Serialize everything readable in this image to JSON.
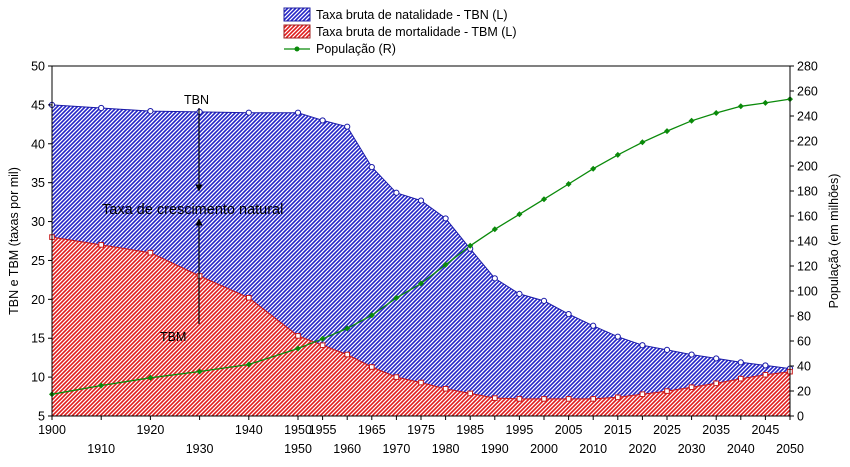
{
  "chart_data": {
    "type": "area",
    "title": "",
    "xlabel": "",
    "ylabel_left": "TBN e TBM (taxas por mil)",
    "ylabel_right": "População (em milhões)",
    "ylim_left": [
      5,
      50
    ],
    "ylim_right": [
      0,
      280
    ],
    "yticks_left": [
      5,
      10,
      15,
      20,
      25,
      30,
      35,
      40,
      45,
      50
    ],
    "yticks_right": [
      0,
      20,
      40,
      60,
      80,
      100,
      120,
      140,
      160,
      180,
      200,
      220,
      240,
      260,
      280
    ],
    "xticks_top": [
      "1900",
      "1920",
      "1940",
      "1950",
      "1955",
      "1965",
      "1975",
      "1985",
      "1995",
      "2005",
      "2015",
      "2025",
      "2035",
      "2045"
    ],
    "xticks_bottom": [
      "1910",
      "1930",
      "1950",
      "1960",
      "1970",
      "1980",
      "1990",
      "2000",
      "2010",
      "2020",
      "2030",
      "2040",
      "2050"
    ],
    "categories": [
      "1900",
      "1910",
      "1920",
      "1930",
      "1940",
      "1950",
      "1955",
      "1960",
      "1965",
      "1970",
      "1975",
      "1980",
      "1985",
      "1990",
      "1995",
      "2000",
      "2005",
      "2010",
      "2015",
      "2020",
      "2025",
      "2030",
      "2035",
      "2040",
      "2045",
      "2050"
    ],
    "series": [
      {
        "name": "Taxa bruta de natalidade - TBN (L)",
        "axis": "left",
        "kind": "area",
        "color": "#2020d0",
        "values": [
          45.0,
          44.6,
          44.2,
          44.1,
          44.0,
          44.0,
          43.0,
          42.2,
          37.0,
          33.7,
          32.7,
          30.4,
          26.5,
          22.7,
          20.7,
          19.8,
          18.1,
          16.6,
          15.2,
          14.1,
          13.5,
          12.9,
          12.4,
          11.9,
          11.5,
          11.1
        ]
      },
      {
        "name": "Taxa bruta de mortalidade - TBM  (L)",
        "axis": "left",
        "kind": "area",
        "color": "#e02020",
        "values": [
          28.0,
          27.0,
          26.0,
          23.0,
          20.2,
          15.3,
          14.1,
          12.9,
          11.3,
          10.0,
          9.3,
          8.5,
          7.9,
          7.3,
          7.2,
          7.2,
          7.2,
          7.2,
          7.4,
          7.8,
          8.2,
          8.7,
          9.2,
          9.8,
          10.3,
          10.7
        ]
      },
      {
        "name": "População (R)",
        "axis": "right",
        "kind": "line",
        "color": "#0a8a0a",
        "values": [
          17.4,
          24.4,
          30.6,
          35.6,
          41.2,
          54.0,
          61.8,
          70.1,
          80.6,
          94.5,
          106.0,
          121.0,
          136.2,
          149.4,
          161.4,
          173.4,
          185.6,
          197.8,
          208.9,
          219.0,
          227.9,
          236.2,
          242.4,
          247.8,
          250.5,
          253.5
        ]
      }
    ],
    "legend": [
      "Taxa bruta de natalidade - TBN (L)",
      "Taxa bruta de mortalidade - TBM  (L)",
      "População (R)"
    ],
    "legend_position": "top-center",
    "annotations": [
      "TBN",
      "TBM",
      "Taxa de crescimento natural"
    ],
    "grid": false
  }
}
